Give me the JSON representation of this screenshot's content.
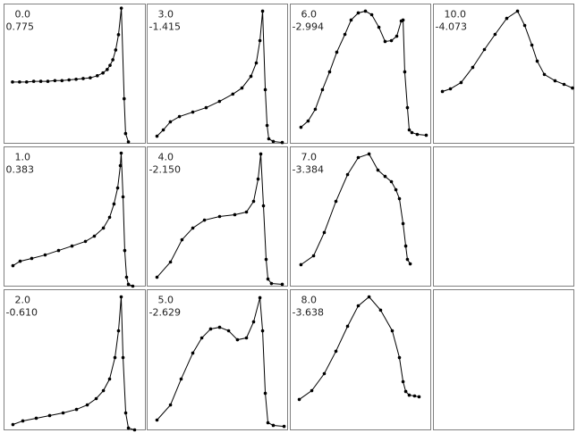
{
  "chart_data": [
    {
      "type": "line",
      "title": "0.0",
      "subtitle": "0.775",
      "color": "#000000",
      "xlim": [
        0,
        100
      ],
      "ylim": [
        0,
        100
      ],
      "x": [
        6,
        11,
        16,
        21,
        26,
        31,
        36,
        41,
        46,
        51,
        56,
        61,
        66,
        70,
        73,
        75,
        77,
        79,
        81,
        83,
        85,
        86,
        88
      ],
      "values": [
        44,
        44,
        44,
        44.5,
        44.5,
        44.5,
        45,
        45,
        45.5,
        46,
        46.5,
        47,
        48.5,
        50.5,
        53,
        56,
        60,
        67,
        78,
        97,
        32,
        7,
        1
      ]
    },
    {
      "type": "line",
      "title": "3.0",
      "subtitle": "-1.415",
      "color": "#000000",
      "xlim": [
        0,
        100
      ],
      "ylim": [
        0,
        100
      ],
      "x": [
        7,
        11.5,
        16.5,
        23,
        32.5,
        42,
        51.5,
        61,
        67.5,
        73.9,
        77.7,
        80.3,
        82.2,
        84.1,
        85.4,
        86.6,
        89.8,
        96.2
      ],
      "values": [
        5.1,
        9.6,
        15.4,
        19.2,
        22.4,
        25.6,
        30.1,
        35.3,
        39.7,
        48.1,
        57.7,
        73.7,
        94.9,
        38.5,
        12.8,
        3.2,
        1.3,
        0.6
      ]
    },
    {
      "type": "line",
      "title": "6.0",
      "subtitle": "-2.994",
      "color": "#000000",
      "xlim": [
        0,
        100
      ],
      "ylim": [
        0,
        100
      ],
      "x": [
        7.6,
        12.7,
        17.8,
        22.9,
        28,
        33.1,
        38.9,
        43.3,
        48.4,
        53.5,
        58,
        63.1,
        67.5,
        72,
        75.8,
        79,
        80.3,
        81.5,
        83.4,
        84.7,
        86.6,
        90.4,
        96.8
      ],
      "values": [
        11.5,
        16,
        24.4,
        38.5,
        51.3,
        65.4,
        78.2,
        88.5,
        93.6,
        94.9,
        92.3,
        83.3,
        73.1,
        73.7,
        76.9,
        87.8,
        88.5,
        51.3,
        25.6,
        9.6,
        7.7,
        6.4,
        5.8
      ]
    },
    {
      "type": "line",
      "title": "10.0",
      "subtitle": "-4.073",
      "color": "#000000",
      "xlim": [
        0,
        100
      ],
      "ylim": [
        0,
        100
      ],
      "x": [
        6.4,
        12.1,
        19.7,
        28,
        36.3,
        43.9,
        52.2,
        59.9,
        65,
        70.1,
        73.9,
        79,
        86.6,
        93,
        99
      ],
      "values": [
        37.2,
        39.1,
        43.6,
        54.5,
        67.3,
        78.2,
        89.7,
        94.9,
        84.6,
        70.5,
        59,
        49.4,
        44.9,
        42.3,
        39.7
      ]
    },
    {
      "type": "line",
      "title": "1.0",
      "subtitle": "0.383",
      "color": "#000000",
      "xlim": [
        0,
        100
      ],
      "ylim": [
        0,
        100
      ],
      "x": [
        6.3,
        11.4,
        19.6,
        29.1,
        38.6,
        48.1,
        57.6,
        63.9,
        70.3,
        74.7,
        77.8,
        80.4,
        82.3,
        82.9,
        84.2,
        85.4,
        86.7,
        88,
        91.1
      ],
      "values": [
        14.7,
        17.9,
        19.9,
        22.4,
        25.6,
        28.8,
        32.1,
        35.9,
        41.7,
        49.4,
        59,
        70.5,
        86.5,
        95.5,
        64.1,
        25.6,
        6.4,
        1.3,
        0
      ]
    },
    {
      "type": "line",
      "title": "4.0",
      "subtitle": "-2.150",
      "color": "#000000",
      "xlim": [
        0,
        100
      ],
      "ylim": [
        0,
        100
      ],
      "x": [
        7,
        16.6,
        24.8,
        32.5,
        40.8,
        51.6,
        62.4,
        70.7,
        75.8,
        79,
        80.9,
        82.8,
        84.7,
        86,
        88.5,
        96.2
      ],
      "values": [
        6.4,
        17.3,
        33.3,
        41.7,
        47.4,
        50,
        51.3,
        53.2,
        60.9,
        76.9,
        94.9,
        57.7,
        19.2,
        5.1,
        1.9,
        1.3
      ]
    },
    {
      "type": "line",
      "title": "7.0",
      "subtitle": "-3.384",
      "color": "#000000",
      "xlim": [
        0,
        100
      ],
      "ylim": [
        0,
        100
      ],
      "x": [
        7.6,
        16.6,
        24.2,
        32.5,
        40.8,
        48.4,
        56.1,
        62.4,
        67.5,
        72,
        75.2,
        77.7,
        80.3,
        82.2,
        83.4,
        85.4
      ],
      "values": [
        15.4,
        21.8,
        38.5,
        60.9,
        80.1,
        92.3,
        94.9,
        83.3,
        78.8,
        75,
        69.2,
        62.8,
        44.9,
        28.8,
        19.2,
        16
      ]
    },
    {
      "type": "line",
      "title": "2.0",
      "subtitle": "-0.610",
      "color": "#000000",
      "xlim": [
        0,
        100
      ],
      "ylim": [
        0,
        100
      ],
      "x": [
        6.3,
        13.3,
        22.8,
        32.3,
        41.8,
        51.3,
        58.9,
        65.2,
        70.3,
        74.7,
        78.5,
        81,
        82.9,
        84.2,
        86.1,
        88,
        92.4
      ],
      "values": [
        3.8,
        6.4,
        8.3,
        10.2,
        12.1,
        14.6,
        17.8,
        22.3,
        28,
        36.3,
        51.6,
        70.7,
        94.9,
        51.6,
        12.1,
        1.3,
        0
      ]
    },
    {
      "type": "line",
      "title": "5.0",
      "subtitle": "-2.629",
      "color": "#000000",
      "xlim": [
        0,
        100
      ],
      "ylim": [
        0,
        100
      ],
      "x": [
        7,
        16.6,
        24.2,
        32.5,
        38.9,
        45.2,
        51.6,
        58,
        64.3,
        70.7,
        75.8,
        80.3,
        82.2,
        84.1,
        86,
        89.8,
        97.5
      ],
      "values": [
        7,
        17.8,
        36.3,
        54.8,
        65.6,
        72,
        73.2,
        70.7,
        64.3,
        65.6,
        77.1,
        94.3,
        70.7,
        26.1,
        5.1,
        3.2,
        2.5
      ]
    },
    {
      "type": "line",
      "title": "8.0",
      "subtitle": "-3.638",
      "color": "#000000",
      "xlim": [
        0,
        100
      ],
      "ylim": [
        0,
        100
      ],
      "x": [
        6.4,
        15.3,
        24.2,
        32.5,
        40.8,
        48.4,
        56.1,
        64.3,
        72.6,
        77.7,
        80.3,
        82.2,
        84.7,
        88.5,
        91.7
      ],
      "values": [
        21.7,
        28,
        40.1,
        56.1,
        73.9,
        88.5,
        94.9,
        85.4,
        70.7,
        51.6,
        34.4,
        27.4,
        24.8,
        24.2,
        23.6
      ]
    }
  ]
}
